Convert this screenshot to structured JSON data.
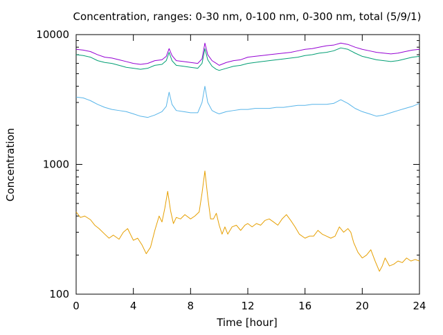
{
  "chart_data": {
    "type": "line",
    "title": "Concentration, ranges: 0-30 nm, 0-100 nm, 0-300 nm, total (5/9/1)",
    "xlabel": "Time [hour]",
    "ylabel": "Concentration",
    "xlim": [
      0,
      24
    ],
    "ylim": [
      100,
      10000
    ],
    "y_scale": "log",
    "grid": false,
    "legend": "none",
    "x_ticks": [
      0,
      4,
      8,
      12,
      16,
      20,
      24
    ],
    "x_tick_labels": [
      "0",
      "4",
      "8",
      "12",
      "16",
      "20",
      "24"
    ],
    "y_ticks": [
      100,
      1000,
      10000
    ],
    "y_tick_labels": [
      "100",
      "1000",
      "10000"
    ],
    "series": [
      {
        "color": "#9400d3",
        "points": [
          [
            0,
            7700
          ],
          [
            0.5,
            7600
          ],
          [
            1,
            7400
          ],
          [
            1.5,
            7000
          ],
          [
            2,
            6700
          ],
          [
            2.5,
            6600
          ],
          [
            3,
            6400
          ],
          [
            3.5,
            6200
          ],
          [
            4,
            6000
          ],
          [
            4.5,
            5900
          ],
          [
            5,
            6000
          ],
          [
            5.5,
            6300
          ],
          [
            6,
            6400
          ],
          [
            6.3,
            6800
          ],
          [
            6.5,
            7800
          ],
          [
            6.7,
            6900
          ],
          [
            7,
            6300
          ],
          [
            7.5,
            6200
          ],
          [
            8,
            6100
          ],
          [
            8.5,
            6000
          ],
          [
            8.8,
            6500
          ],
          [
            9,
            8600
          ],
          [
            9.2,
            7000
          ],
          [
            9.5,
            6300
          ],
          [
            9.8,
            6000
          ],
          [
            10,
            5800
          ],
          [
            10.5,
            6100
          ],
          [
            11,
            6300
          ],
          [
            11.5,
            6400
          ],
          [
            12,
            6700
          ],
          [
            12.5,
            6800
          ],
          [
            13,
            6900
          ],
          [
            13.5,
            7000
          ],
          [
            14,
            7100
          ],
          [
            14.5,
            7200
          ],
          [
            15,
            7300
          ],
          [
            15.5,
            7500
          ],
          [
            16,
            7700
          ],
          [
            16.5,
            7800
          ],
          [
            17,
            8000
          ],
          [
            17.5,
            8200
          ],
          [
            18,
            8300
          ],
          [
            18.5,
            8600
          ],
          [
            19,
            8400
          ],
          [
            19.5,
            8000
          ],
          [
            20,
            7700
          ],
          [
            20.5,
            7500
          ],
          [
            21,
            7300
          ],
          [
            21.5,
            7200
          ],
          [
            22,
            7100
          ],
          [
            22.5,
            7200
          ],
          [
            23,
            7400
          ],
          [
            23.5,
            7600
          ],
          [
            24,
            7700
          ]
        ]
      },
      {
        "color": "#009e73",
        "points": [
          [
            0,
            7000
          ],
          [
            0.5,
            6900
          ],
          [
            1,
            6700
          ],
          [
            1.5,
            6300
          ],
          [
            2,
            6100
          ],
          [
            2.5,
            6000
          ],
          [
            3,
            5800
          ],
          [
            3.5,
            5600
          ],
          [
            4,
            5500
          ],
          [
            4.5,
            5400
          ],
          [
            5,
            5500
          ],
          [
            5.5,
            5800
          ],
          [
            6,
            5900
          ],
          [
            6.3,
            6300
          ],
          [
            6.5,
            7300
          ],
          [
            6.7,
            6300
          ],
          [
            7,
            5800
          ],
          [
            7.5,
            5700
          ],
          [
            8,
            5600
          ],
          [
            8.5,
            5500
          ],
          [
            8.8,
            6000
          ],
          [
            9,
            7800
          ],
          [
            9.2,
            6400
          ],
          [
            9.5,
            5700
          ],
          [
            9.8,
            5400
          ],
          [
            10,
            5300
          ],
          [
            10.5,
            5500
          ],
          [
            11,
            5700
          ],
          [
            11.5,
            5800
          ],
          [
            12,
            6000
          ],
          [
            12.5,
            6100
          ],
          [
            13,
            6200
          ],
          [
            13.5,
            6300
          ],
          [
            14,
            6400
          ],
          [
            14.5,
            6500
          ],
          [
            15,
            6600
          ],
          [
            15.5,
            6700
          ],
          [
            16,
            6900
          ],
          [
            16.5,
            7000
          ],
          [
            17,
            7200
          ],
          [
            17.5,
            7300
          ],
          [
            18,
            7500
          ],
          [
            18.5,
            7900
          ],
          [
            19,
            7700
          ],
          [
            19.5,
            7200
          ],
          [
            20,
            6800
          ],
          [
            20.5,
            6600
          ],
          [
            21,
            6400
          ],
          [
            21.5,
            6300
          ],
          [
            22,
            6200
          ],
          [
            22.5,
            6300
          ],
          [
            23,
            6500
          ],
          [
            23.5,
            6700
          ],
          [
            24,
            6800
          ]
        ]
      },
      {
        "color": "#56b4e9",
        "points": [
          [
            0,
            3300
          ],
          [
            0.5,
            3250
          ],
          [
            1,
            3100
          ],
          [
            1.5,
            2900
          ],
          [
            2,
            2750
          ],
          [
            2.5,
            2650
          ],
          [
            3,
            2600
          ],
          [
            3.5,
            2550
          ],
          [
            4,
            2450
          ],
          [
            4.5,
            2350
          ],
          [
            5,
            2300
          ],
          [
            5.5,
            2400
          ],
          [
            6,
            2550
          ],
          [
            6.3,
            2800
          ],
          [
            6.5,
            3600
          ],
          [
            6.7,
            2900
          ],
          [
            7,
            2600
          ],
          [
            7.5,
            2550
          ],
          [
            8,
            2500
          ],
          [
            8.5,
            2500
          ],
          [
            8.8,
            3000
          ],
          [
            9,
            4000
          ],
          [
            9.2,
            3000
          ],
          [
            9.5,
            2600
          ],
          [
            9.8,
            2500
          ],
          [
            10,
            2450
          ],
          [
            10.5,
            2550
          ],
          [
            11,
            2600
          ],
          [
            11.5,
            2650
          ],
          [
            12,
            2650
          ],
          [
            12.5,
            2700
          ],
          [
            13,
            2700
          ],
          [
            13.5,
            2700
          ],
          [
            14,
            2750
          ],
          [
            14.5,
            2750
          ],
          [
            15,
            2800
          ],
          [
            15.5,
            2850
          ],
          [
            16,
            2850
          ],
          [
            16.5,
            2900
          ],
          [
            17,
            2900
          ],
          [
            17.5,
            2900
          ],
          [
            18,
            2950
          ],
          [
            18.5,
            3150
          ],
          [
            19,
            2950
          ],
          [
            19.5,
            2700
          ],
          [
            20,
            2550
          ],
          [
            20.5,
            2450
          ],
          [
            21,
            2350
          ],
          [
            21.5,
            2400
          ],
          [
            22,
            2500
          ],
          [
            22.5,
            2600
          ],
          [
            23,
            2700
          ],
          [
            23.5,
            2800
          ],
          [
            24,
            2950
          ]
        ]
      },
      {
        "color": "#e69f00",
        "points": [
          [
            0,
            430
          ],
          [
            0.3,
            390
          ],
          [
            0.6,
            400
          ],
          [
            1,
            375
          ],
          [
            1.3,
            340
          ],
          [
            1.6,
            320
          ],
          [
            2,
            290
          ],
          [
            2.3,
            270
          ],
          [
            2.6,
            285
          ],
          [
            3,
            265
          ],
          [
            3.3,
            300
          ],
          [
            3.6,
            320
          ],
          [
            4,
            260
          ],
          [
            4.3,
            270
          ],
          [
            4.6,
            240
          ],
          [
            4.9,
            205
          ],
          [
            5.2,
            230
          ],
          [
            5.5,
            310
          ],
          [
            5.8,
            400
          ],
          [
            6,
            360
          ],
          [
            6.2,
            460
          ],
          [
            6.4,
            620
          ],
          [
            6.6,
            440
          ],
          [
            6.8,
            350
          ],
          [
            7,
            390
          ],
          [
            7.3,
            380
          ],
          [
            7.6,
            410
          ],
          [
            8,
            380
          ],
          [
            8.3,
            400
          ],
          [
            8.6,
            430
          ],
          [
            8.8,
            600
          ],
          [
            9,
            890
          ],
          [
            9.2,
            560
          ],
          [
            9.4,
            380
          ],
          [
            9.6,
            380
          ],
          [
            9.8,
            420
          ],
          [
            10,
            340
          ],
          [
            10.2,
            290
          ],
          [
            10.4,
            330
          ],
          [
            10.6,
            290
          ],
          [
            10.9,
            330
          ],
          [
            11.2,
            340
          ],
          [
            11.5,
            310
          ],
          [
            11.8,
            340
          ],
          [
            12,
            350
          ],
          [
            12.3,
            330
          ],
          [
            12.6,
            350
          ],
          [
            12.9,
            340
          ],
          [
            13.2,
            370
          ],
          [
            13.5,
            380
          ],
          [
            13.8,
            360
          ],
          [
            14.1,
            340
          ],
          [
            14.4,
            380
          ],
          [
            14.7,
            410
          ],
          [
            15,
            370
          ],
          [
            15.3,
            330
          ],
          [
            15.6,
            290
          ],
          [
            16,
            270
          ],
          [
            16.3,
            280
          ],
          [
            16.6,
            280
          ],
          [
            16.9,
            310
          ],
          [
            17.2,
            290
          ],
          [
            17.5,
            280
          ],
          [
            17.8,
            270
          ],
          [
            18.1,
            280
          ],
          [
            18.4,
            330
          ],
          [
            18.7,
            300
          ],
          [
            19,
            320
          ],
          [
            19.2,
            300
          ],
          [
            19.4,
            250
          ],
          [
            19.7,
            210
          ],
          [
            20,
            190
          ],
          [
            20.3,
            200
          ],
          [
            20.6,
            220
          ],
          [
            20.9,
            180
          ],
          [
            21.2,
            150
          ],
          [
            21.4,
            165
          ],
          [
            21.6,
            190
          ],
          [
            21.9,
            165
          ],
          [
            22.2,
            170
          ],
          [
            22.5,
            180
          ],
          [
            22.8,
            175
          ],
          [
            23.1,
            190
          ],
          [
            23.4,
            180
          ],
          [
            23.7,
            185
          ],
          [
            24,
            180
          ]
        ]
      }
    ]
  }
}
